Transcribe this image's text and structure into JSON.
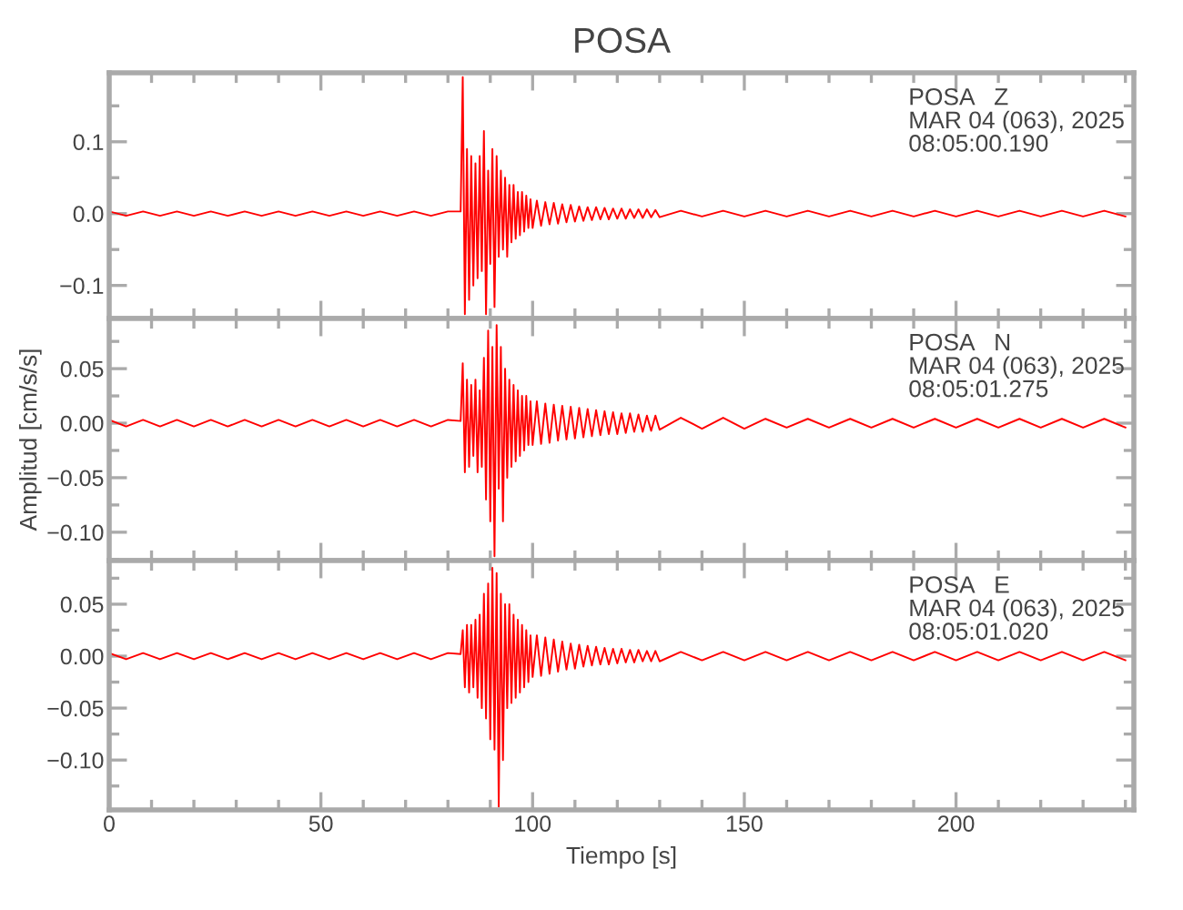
{
  "chart_data": [
    {
      "type": "line",
      "title": "POSA",
      "annotations": [
        "POSA   Z\nMAR 04 (063), 2025\n08:05:00.190"
      ],
      "xlim": [
        0,
        242
      ],
      "xticks": [
        0,
        50,
        100,
        150,
        200
      ],
      "ylim": [
        -0.146,
        0.196
      ],
      "yticks": [
        {
          "value": -0.1,
          "label": "−0.1"
        },
        {
          "value": 0.0,
          "label": "0.0"
        },
        0.1
      ],
      "tick_labels": "y",
      "grid": false,
      "series": [
        {
          "color": "#ff0000",
          "x": [
            0,
            4,
            8,
            12,
            16,
            20,
            24,
            28,
            32,
            36,
            40,
            44,
            48,
            52,
            56,
            60,
            64,
            68,
            72,
            76,
            80,
            83,
            83.5,
            84,
            84.5,
            85,
            85.5,
            86,
            86.5,
            87,
            87.5,
            88,
            88.5,
            89,
            89.5,
            90,
            90.5,
            91,
            91.5,
            92,
            92.5,
            93,
            93.5,
            94,
            94.5,
            95,
            95.5,
            96,
            96.5,
            97,
            97.5,
            98,
            98.5,
            99,
            99.5,
            100,
            101,
            102,
            103,
            104,
            105,
            106,
            107,
            108,
            109,
            110,
            111,
            112,
            113,
            114,
            115,
            116,
            117,
            118,
            119,
            120,
            121,
            122,
            123,
            124,
            125,
            126,
            127,
            128,
            129,
            130,
            135,
            140,
            145,
            150,
            155,
            160,
            165,
            170,
            175,
            180,
            185,
            190,
            195,
            200,
            205,
            210,
            215,
            220,
            225,
            230,
            235,
            240
          ],
          "values": [
            0.003,
            -0.003,
            0.003,
            -0.003,
            0.003,
            -0.003,
            0.003,
            -0.003,
            0.003,
            -0.003,
            0.003,
            -0.003,
            0.003,
            -0.003,
            0.003,
            -0.003,
            0.003,
            -0.003,
            0.003,
            -0.003,
            0.003,
            0.003,
            0.19,
            -0.14,
            0.09,
            -0.12,
            0.08,
            -0.1,
            0.07,
            -0.09,
            0.08,
            -0.08,
            0.115,
            -0.14,
            0.06,
            -0.07,
            0.09,
            -0.13,
            0.08,
            -0.06,
            0.06,
            -0.05,
            0.05,
            -0.06,
            0.04,
            -0.04,
            0.04,
            -0.035,
            0.03,
            -0.03,
            0.03,
            -0.025,
            0.025,
            -0.02,
            0.02,
            -0.02,
            0.018,
            -0.017,
            0.016,
            -0.015,
            0.015,
            -0.014,
            0.013,
            -0.012,
            0.012,
            -0.011,
            0.01,
            -0.01,
            0.009,
            -0.009,
            0.009,
            -0.008,
            0.008,
            -0.008,
            0.007,
            -0.007,
            0.007,
            -0.007,
            0.006,
            -0.006,
            0.006,
            -0.006,
            0.006,
            -0.005,
            0.005,
            -0.005,
            0.004,
            -0.004,
            0.004,
            -0.004,
            0.004,
            -0.004,
            0.004,
            -0.004,
            0.004,
            -0.004,
            0.004,
            -0.004,
            0.004,
            -0.004,
            0.004,
            -0.004,
            0.004,
            -0.004,
            0.004,
            -0.004,
            0.004,
            -0.004
          ]
        }
      ]
    },
    {
      "type": "line",
      "ylabel": "Amplitud [cm/s/s]",
      "annotations": [
        "POSA   N\nMAR 04 (063), 2025\n08:05:01.275"
      ],
      "xlim": [
        0,
        242
      ],
      "xticks": [
        0,
        50,
        100,
        150,
        200
      ],
      "ylim": [
        -0.126,
        0.096
      ],
      "yticks": [
        {
          "value": -0.1,
          "label": "−0.10"
        },
        {
          "value": -0.05,
          "label": "−0.05"
        },
        {
          "value": 0.0,
          "label": "0.00"
        },
        {
          "value": 0.05,
          "label": "0.05"
        }
      ],
      "tick_labels": "y",
      "grid": false,
      "series": [
        {
          "color": "#ff0000",
          "x": [
            0,
            4,
            8,
            12,
            16,
            20,
            24,
            28,
            32,
            36,
            40,
            44,
            48,
            52,
            56,
            60,
            64,
            68,
            72,
            76,
            80,
            83,
            83.5,
            84,
            84.5,
            85,
            85.5,
            86,
            86.5,
            87,
            87.5,
            88,
            88.5,
            89,
            89.5,
            90,
            90.5,
            91,
            91.5,
            92,
            92.5,
            93,
            93.5,
            94,
            94.5,
            95,
            95.5,
            96,
            96.5,
            97,
            97.5,
            98,
            98.5,
            99,
            99.5,
            100,
            101,
            102,
            103,
            104,
            105,
            106,
            107,
            108,
            109,
            110,
            111,
            112,
            113,
            114,
            115,
            116,
            117,
            118,
            119,
            120,
            121,
            122,
            123,
            124,
            125,
            126,
            127,
            128,
            129,
            130,
            135,
            140,
            145,
            150,
            155,
            160,
            165,
            170,
            175,
            180,
            185,
            190,
            195,
            200,
            205,
            210,
            215,
            220,
            225,
            230,
            235,
            240
          ],
          "values": [
            0.003,
            -0.003,
            0.003,
            -0.003,
            0.003,
            -0.003,
            0.003,
            -0.003,
            0.003,
            -0.003,
            0.003,
            -0.003,
            0.003,
            -0.003,
            0.003,
            -0.003,
            0.003,
            -0.003,
            0.003,
            -0.003,
            0.003,
            0.002,
            0.055,
            -0.045,
            0.04,
            -0.04,
            0.035,
            -0.03,
            0.04,
            -0.045,
            0.03,
            -0.04,
            0.06,
            -0.07,
            0.085,
            -0.09,
            0.07,
            -0.122,
            0.09,
            -0.06,
            0.07,
            -0.09,
            0.05,
            -0.05,
            0.04,
            -0.04,
            0.035,
            -0.035,
            0.03,
            -0.03,
            0.025,
            -0.025,
            0.025,
            -0.02,
            0.02,
            -0.02,
            0.02,
            -0.019,
            0.018,
            -0.018,
            0.017,
            -0.016,
            0.016,
            -0.015,
            0.015,
            -0.014,
            0.014,
            -0.013,
            0.013,
            -0.012,
            0.012,
            -0.011,
            0.011,
            -0.01,
            0.01,
            -0.01,
            0.009,
            -0.009,
            0.009,
            -0.008,
            0.008,
            -0.008,
            0.007,
            -0.007,
            0.007,
            -0.006,
            0.005,
            -0.005,
            0.005,
            -0.005,
            0.004,
            -0.004,
            0.004,
            -0.004,
            0.004,
            -0.004,
            0.004,
            -0.004,
            0.004,
            -0.004,
            0.004,
            -0.004,
            0.004,
            -0.004,
            0.004,
            -0.004,
            0.004,
            -0.004
          ]
        }
      ]
    },
    {
      "type": "line",
      "xlabel": "Tiempo [s]",
      "annotations": [
        "POSA   E\nMAR 04 (063), 2025\n08:05:01.020"
      ],
      "xlim": [
        0,
        242
      ],
      "xticks": [
        0,
        50,
        100,
        150,
        200
      ],
      "ylim": [
        -0.148,
        0.092
      ],
      "yticks": [
        {
          "value": -0.1,
          "label": "−0.10"
        },
        {
          "value": -0.05,
          "label": "−0.05"
        },
        {
          "value": 0.0,
          "label": "0.00"
        },
        {
          "value": 0.05,
          "label": "0.05"
        }
      ],
      "grid": false,
      "series": [
        {
          "color": "#ff0000",
          "x": [
            0,
            4,
            8,
            12,
            16,
            20,
            24,
            28,
            32,
            36,
            40,
            44,
            48,
            52,
            56,
            60,
            64,
            68,
            72,
            76,
            80,
            83,
            83.5,
            84,
            84.5,
            85,
            85.5,
            86,
            86.5,
            87,
            87.5,
            88,
            88.5,
            89,
            89.5,
            90,
            90.5,
            91,
            91.5,
            92,
            92.5,
            93,
            93.5,
            94,
            94.5,
            95,
            95.5,
            96,
            96.5,
            97,
            97.5,
            98,
            98.5,
            99,
            99.5,
            100,
            101,
            102,
            103,
            104,
            105,
            106,
            107,
            108,
            109,
            110,
            111,
            112,
            113,
            114,
            115,
            116,
            117,
            118,
            119,
            120,
            121,
            122,
            123,
            124,
            125,
            126,
            127,
            128,
            129,
            130,
            135,
            140,
            145,
            150,
            155,
            160,
            165,
            170,
            175,
            180,
            185,
            190,
            195,
            200,
            205,
            210,
            215,
            220,
            225,
            230,
            235,
            240
          ],
          "values": [
            0.003,
            -0.003,
            0.003,
            -0.003,
            0.003,
            -0.003,
            0.003,
            -0.003,
            0.003,
            -0.003,
            0.003,
            -0.003,
            0.003,
            -0.003,
            0.003,
            -0.003,
            0.003,
            -0.003,
            0.003,
            -0.003,
            0.003,
            0.002,
            0.025,
            -0.03,
            0.03,
            -0.035,
            0.03,
            -0.03,
            0.035,
            -0.04,
            0.04,
            -0.05,
            0.06,
            -0.06,
            0.07,
            -0.08,
            0.085,
            -0.09,
            0.08,
            -0.145,
            0.06,
            -0.1,
            0.05,
            -0.05,
            0.05,
            -0.045,
            0.04,
            -0.04,
            0.035,
            -0.035,
            0.03,
            -0.03,
            0.025,
            -0.025,
            0.02,
            -0.02,
            0.02,
            -0.019,
            0.018,
            -0.017,
            0.016,
            -0.015,
            0.014,
            -0.013,
            0.012,
            -0.012,
            0.011,
            -0.01,
            0.01,
            -0.009,
            0.009,
            -0.008,
            0.008,
            -0.008,
            0.007,
            -0.007,
            0.007,
            -0.006,
            0.006,
            -0.006,
            0.006,
            -0.005,
            0.005,
            -0.005,
            0.005,
            -0.005,
            0.004,
            -0.004,
            0.004,
            -0.004,
            0.004,
            -0.004,
            0.004,
            -0.004,
            0.004,
            -0.004,
            0.004,
            -0.004,
            0.004,
            -0.004,
            0.004,
            -0.004,
            0.004,
            -0.004,
            0.004,
            -0.004,
            0.004,
            -0.004
          ]
        }
      ]
    }
  ]
}
